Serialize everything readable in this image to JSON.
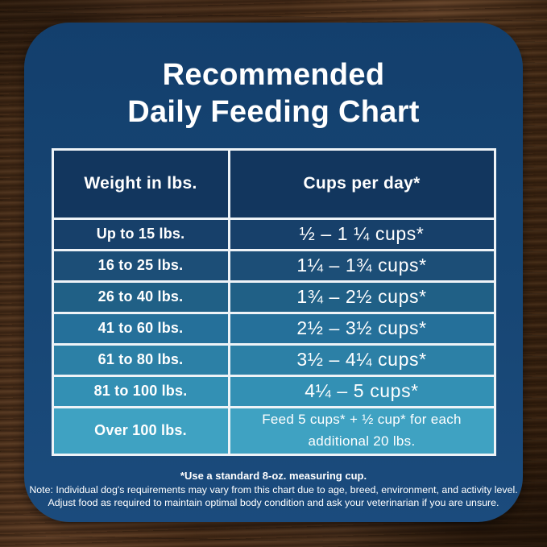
{
  "title": {
    "line1": "Recommended",
    "line2": "Daily Feeding Chart"
  },
  "table": {
    "headers": {
      "weight": "Weight in lbs.",
      "cups": "Cups per day*"
    },
    "header_color": "#12365e",
    "row_colors": [
      "#17406a",
      "#1c4e77",
      "#206086",
      "#25709a",
      "#2c80a6",
      "#3390b4",
      "#3fa2c2"
    ],
    "border_color": "#eef3f7",
    "rows": [
      {
        "weight": "Up to 15 lbs.",
        "cups": "½ – 1 ¼ cups*"
      },
      {
        "weight": "16 to 25 lbs.",
        "cups": "1¼ – 1¾ cups*"
      },
      {
        "weight": "26 to 40 lbs.",
        "cups": "1¾ – 2½ cups*"
      },
      {
        "weight": "41 to 60 lbs.",
        "cups": "2½ – 3½ cups*"
      },
      {
        "weight": "61 to 80 lbs.",
        "cups": "3½ – 4¼ cups*"
      },
      {
        "weight": "81 to 100 lbs.",
        "cups": "4¼ – 5 cups*"
      },
      {
        "weight": "Over 100 lbs.",
        "cups": "Feed 5 cups* + ½ cup* for each additional 20 lbs."
      }
    ]
  },
  "notes": {
    "measuring_cup": "*Use a standard 8-oz. measuring cup.",
    "disclaimer1": "Note: Individual dog's requirements may vary from this chart due to age, breed, environment, and activity level.",
    "disclaimer2": "Adjust food as required to maintain optimal body condition and ask your veterinarian if you are unsure."
  },
  "colors": {
    "card_top": "#133f6d",
    "card_bottom": "#1b4b7d",
    "text": "#ffffff",
    "wood_background": "#452b18"
  },
  "chart_data": {
    "type": "table",
    "title": "Recommended Daily Feeding Chart",
    "columns": [
      "Weight in lbs.",
      "Cups per day*"
    ],
    "rows": [
      [
        "Up to 15 lbs.",
        "½ – 1 ¼ cups*"
      ],
      [
        "16 to 25 lbs.",
        "1¼ – 1¾ cups*"
      ],
      [
        "26 to 40 lbs.",
        "1¾ – 2½ cups*"
      ],
      [
        "41 to 60 lbs.",
        "2½ – 3½ cups*"
      ],
      [
        "61 to 80 lbs.",
        "3½ – 4¼ cups*"
      ],
      [
        "81 to 100 lbs.",
        "4¼ – 5 cups*"
      ],
      [
        "Over 100 lbs.",
        "Feed 5 cups* + ½ cup* for each additional 20 lbs."
      ]
    ],
    "footnotes": [
      "*Use a standard 8-oz. measuring cup.",
      "Note: Individual dog's requirements may vary from this chart due to age, breed, environment, and activity level.",
      "Adjust food as required to maintain optimal body condition and ask your veterinarian if you are unsure."
    ]
  }
}
